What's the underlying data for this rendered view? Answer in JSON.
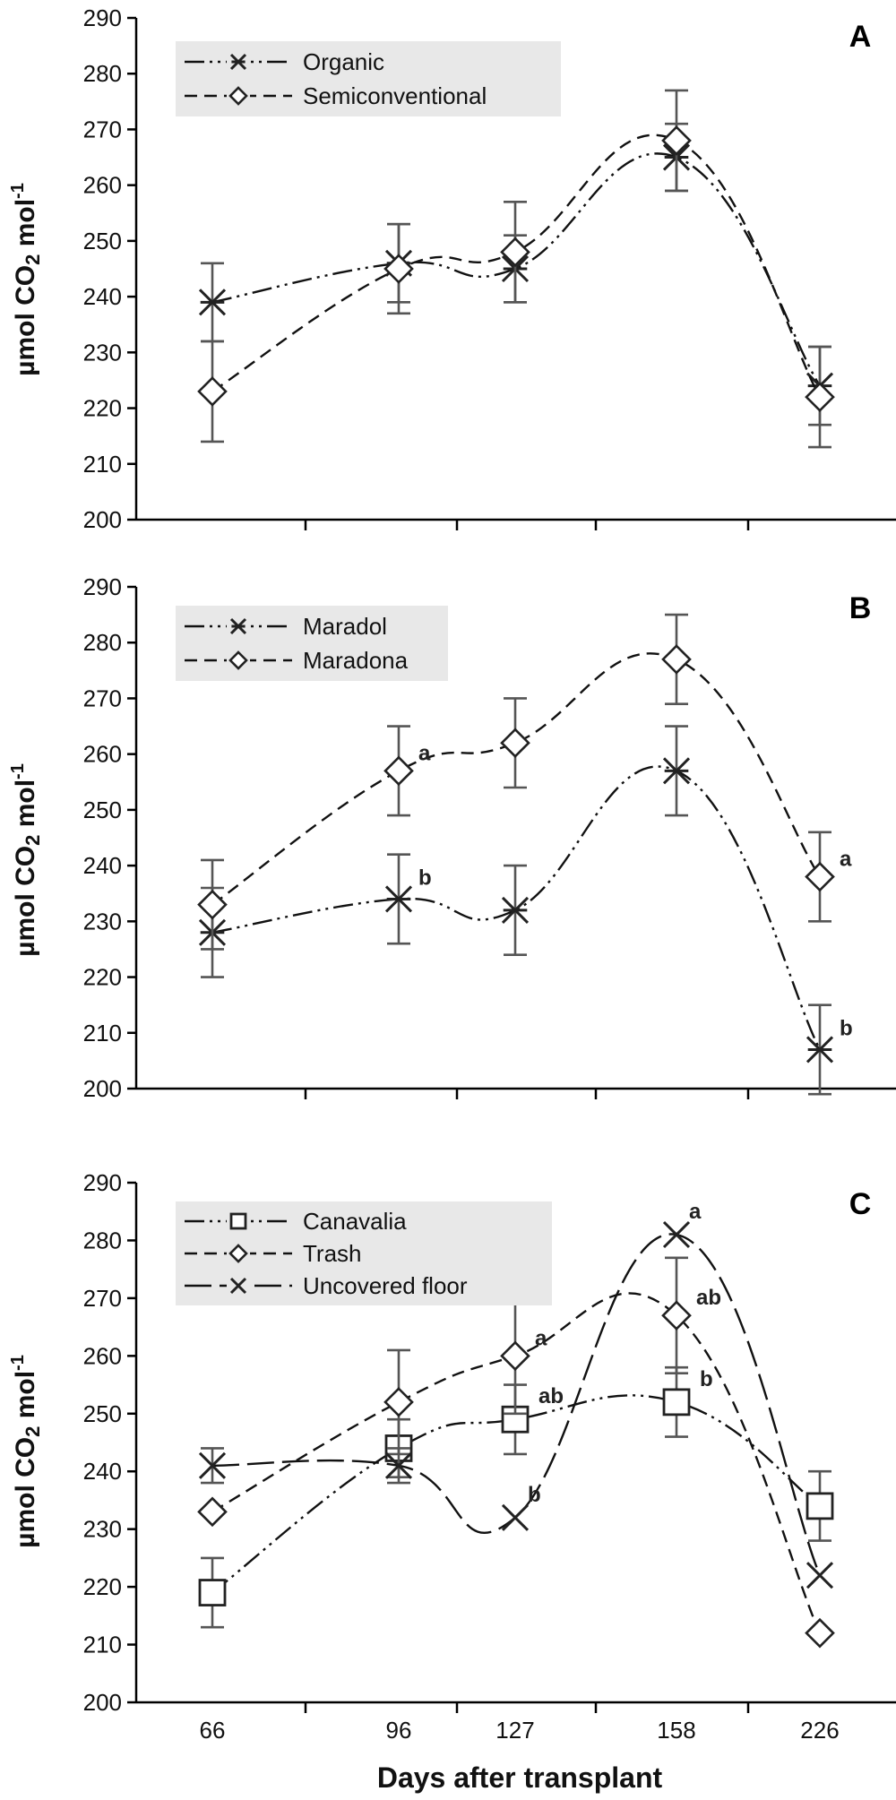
{
  "chart_data": [
    {
      "type": "line",
      "panel_label": "A",
      "ylabel_main": "µmol CO",
      "ylabel_sub": "2",
      "ylabel_mid": " mol",
      "ylabel_sup": "-1",
      "ylim": [
        200,
        290
      ],
      "yticks": [
        200,
        210,
        220,
        230,
        240,
        250,
        260,
        270,
        280,
        290
      ],
      "categories": [
        "66",
        "96",
        "127",
        "158",
        "226"
      ],
      "legend_position": "top-left",
      "series": [
        {
          "name": "Organic",
          "marker": "star",
          "line": "dash-dot-dot",
          "values": [
            239,
            246,
            245,
            265,
            224
          ],
          "errors": [
            7,
            7,
            6,
            6,
            7
          ],
          "labels": [
            "",
            "",
            "",
            "",
            ""
          ]
        },
        {
          "name": "Semiconventional",
          "marker": "diamond",
          "line": "dash",
          "values": [
            223,
            245,
            248,
            268,
            222
          ],
          "errors": [
            9,
            8,
            9,
            9,
            9
          ],
          "labels": [
            "",
            "",
            "",
            "",
            ""
          ]
        }
      ]
    },
    {
      "type": "line",
      "panel_label": "B",
      "ylabel_main": "µmol CO",
      "ylabel_sub": "2",
      "ylabel_mid": " mol",
      "ylabel_sup": "-1",
      "ylim": [
        200,
        290
      ],
      "yticks": [
        200,
        210,
        220,
        230,
        240,
        250,
        260,
        270,
        280,
        290
      ],
      "categories": [
        "66",
        "96",
        "127",
        "158",
        "226"
      ],
      "legend_position": "top-left",
      "series": [
        {
          "name": "Maradol",
          "marker": "star",
          "line": "dash-dot-dot",
          "values": [
            228,
            234,
            232,
            257,
            207
          ],
          "errors": [
            8,
            8,
            8,
            8,
            8
          ],
          "labels": [
            "",
            "b",
            "",
            "",
            "b"
          ]
        },
        {
          "name": "Maradona",
          "marker": "diamond",
          "line": "dash",
          "values": [
            233,
            257,
            262,
            277,
            238
          ],
          "errors": [
            8,
            8,
            8,
            8,
            8
          ],
          "labels": [
            "",
            "a",
            "",
            "",
            "a"
          ]
        }
      ]
    },
    {
      "type": "line",
      "panel_label": "C",
      "ylabel_main": "µmol CO",
      "ylabel_sub": "2",
      "ylabel_mid": " mol",
      "ylabel_sup": "-1",
      "xlabel": "Days after transplant",
      "ylim": [
        200,
        290
      ],
      "yticks": [
        200,
        210,
        220,
        230,
        240,
        250,
        260,
        270,
        280,
        290
      ],
      "categories": [
        "66",
        "96",
        "127",
        "158",
        "226"
      ],
      "legend_position": "top-left",
      "series": [
        {
          "name": "Canavalia",
          "marker": "square",
          "line": "dash-dot-dot",
          "values": [
            219,
            244,
            249,
            252,
            234
          ],
          "errors": [
            6,
            5,
            6,
            6,
            6
          ],
          "labels": [
            "",
            "",
            "ab",
            "b",
            ""
          ]
        },
        {
          "name": "Trash",
          "marker": "diamond",
          "line": "dash",
          "values": [
            233,
            252,
            260,
            267,
            212
          ],
          "errors": [
            0,
            9,
            10,
            10,
            0
          ],
          "labels": [
            "",
            "",
            "a",
            "ab",
            ""
          ]
        },
        {
          "name": "Uncovered floor",
          "marker": "x",
          "line": "long-dash",
          "values": [
            241,
            241,
            232,
            281,
            222
          ],
          "errors": [
            3,
            3,
            0,
            0,
            0
          ],
          "labels": [
            "",
            "",
            "b",
            "a",
            ""
          ]
        }
      ]
    }
  ]
}
